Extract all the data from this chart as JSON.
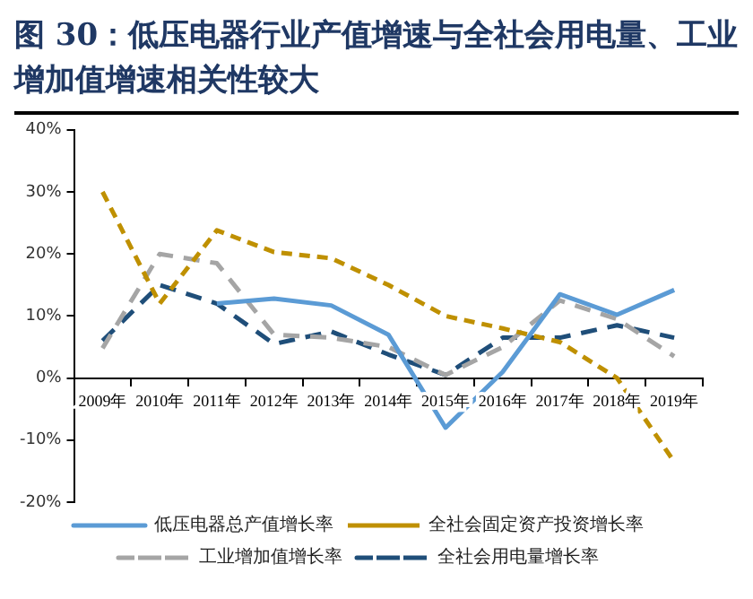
{
  "chart_data": {
    "type": "line",
    "title": "图 30：低压电器行业产值增速与全社会用电量、工业增加值增速相关性较大",
    "categories": [
      "2009年",
      "2010年",
      "2011年",
      "2012年",
      "2013年",
      "2014年",
      "2015年",
      "2016年",
      "2017年",
      "2018年",
      "2019年"
    ],
    "ylim": [
      -20,
      40
    ],
    "yticks": [
      {
        "value": -20,
        "label": "-20%"
      },
      {
        "value": -10,
        "label": "-10%"
      },
      {
        "value": 0,
        "label": "0%"
      },
      {
        "value": 10,
        "label": "10%"
      },
      {
        "value": 20,
        "label": "20%"
      },
      {
        "value": 30,
        "label": "30%"
      },
      {
        "value": 40,
        "label": "40%"
      }
    ],
    "grid": false,
    "legend": "bottom",
    "marker": "none",
    "series": [
      {
        "name": "低压电器总产值增长率",
        "color": "#5b9bd5",
        "line_style": "solid",
        "values": [
          null,
          null,
          12,
          12.8,
          11.7,
          7,
          -8,
          1,
          13.5,
          10.2,
          14.2
        ]
      },
      {
        "name": "全社会固定资产投资增长率",
        "color": "#bf9000",
        "line_style": "dashed",
        "values": [
          30,
          12,
          23.8,
          20.3,
          19.3,
          15,
          10,
          8,
          5.8,
          0,
          -13.5
        ]
      },
      {
        "name": "工业增加值增长率",
        "color": "#a5a5a5",
        "line_style": "dashed",
        "values": [
          4.8,
          20,
          18.5,
          7,
          6.5,
          5,
          0.5,
          5,
          12.5,
          9.5,
          3.5
        ]
      },
      {
        "name": "全社会用电量增长率",
        "color": "#1f4e79",
        "line_style": "dashed",
        "values": [
          6,
          15,
          12,
          5.5,
          7.5,
          3.8,
          0.5,
          6.5,
          6.5,
          8.5,
          6.5
        ]
      }
    ]
  }
}
